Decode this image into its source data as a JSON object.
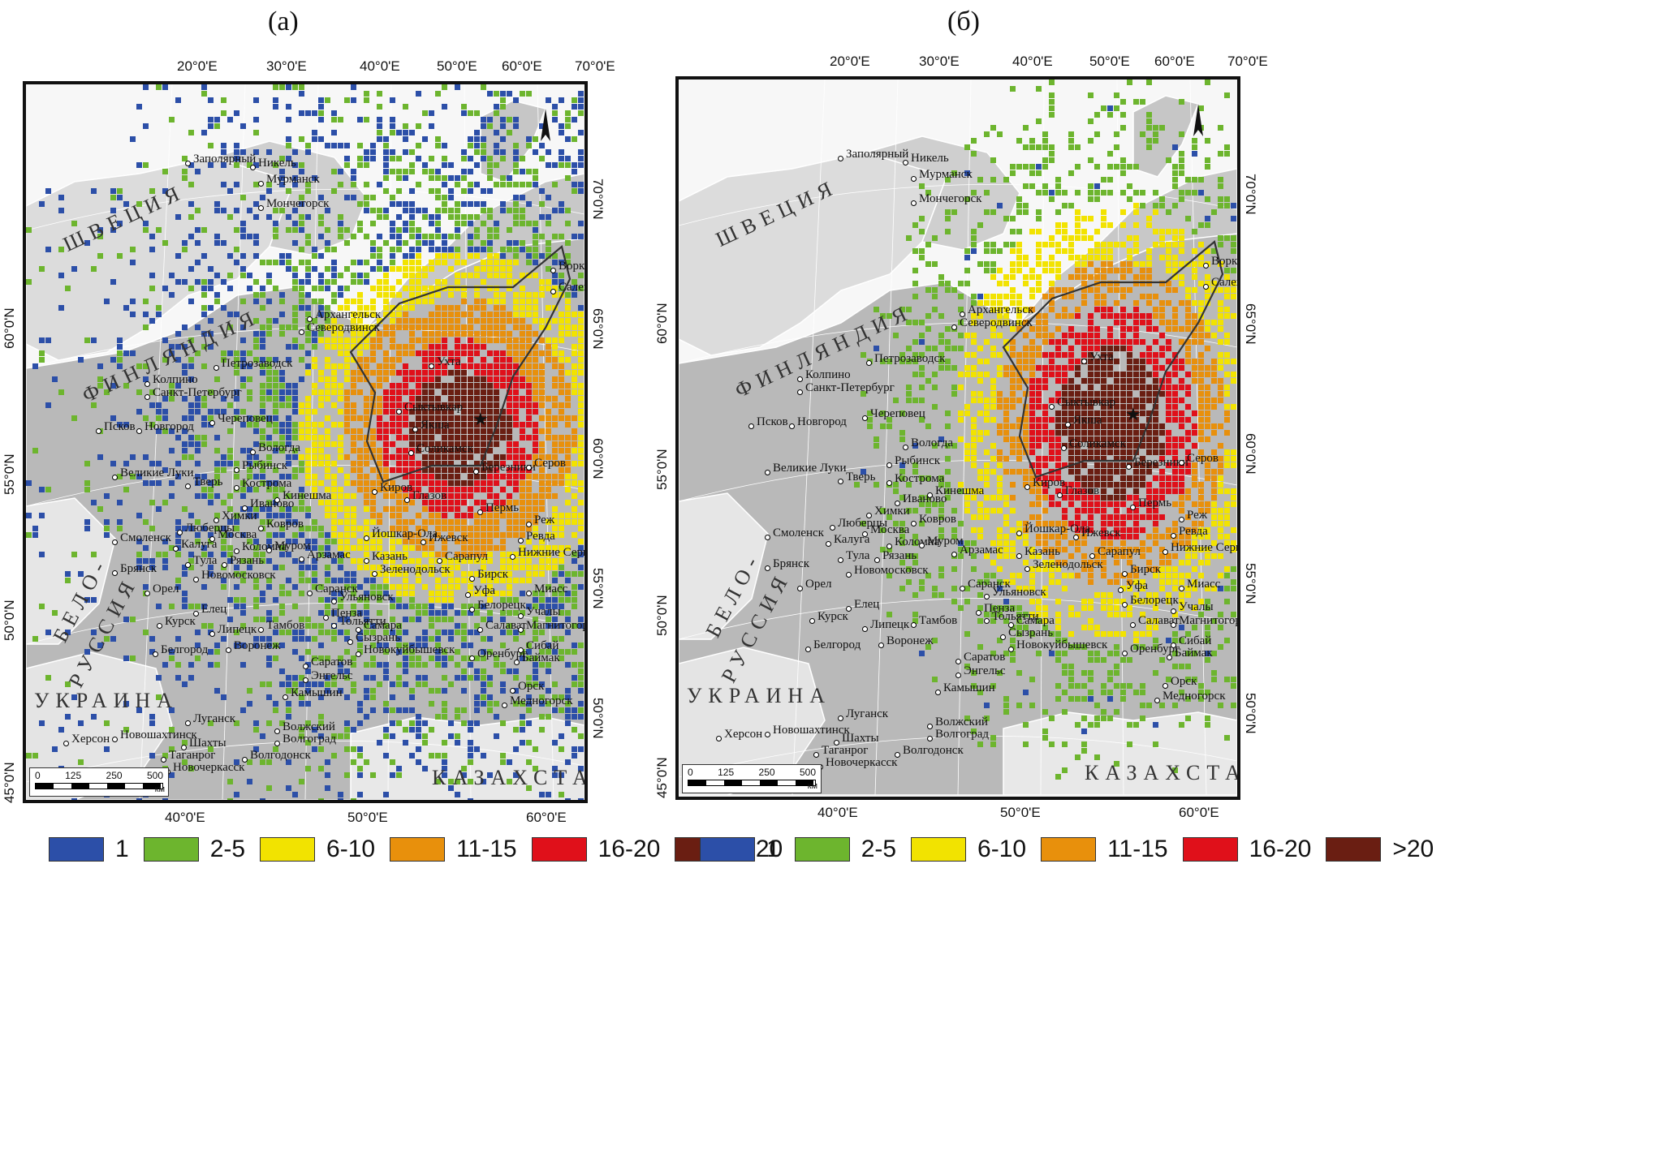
{
  "panels": [
    {
      "label": "(а)",
      "lon_top": [
        "20°0'E",
        "30°0'E",
        "40°0'E",
        "50°0'E",
        "60°0'E",
        "70°0'E"
      ],
      "lon_bottom": [
        "40°0'E",
        "50°0'E",
        "60°0'E"
      ],
      "lat_left": [
        "60°0'N",
        "55°0'N",
        "50°0'N",
        "45°0'N"
      ],
      "lat_right": [
        "70°0'N",
        "65°0'N",
        "60°0'N",
        "55°0'N",
        "50°0'N"
      ],
      "countries": [
        "ШВЕЦИЯ",
        "ФИНЛЯНДИЯ",
        "БЕЛО-",
        "РУССИЯ",
        "УКРАИНА",
        "КАЗАХСТАН"
      ],
      "cities": [
        "Заполярный",
        "Никель",
        "Мурманск",
        "Мончегорск",
        "Архангельск",
        "Северодвинск",
        "Петрозаводск",
        "Колпино",
        "Санкт-Петербург",
        "Псков",
        "Новгород",
        "Череповец",
        "Вологда",
        "Великие Луки",
        "Рыбинск",
        "Тверь",
        "Кострома",
        "Кинешма",
        "Иваново",
        "Химки",
        "Ковров",
        "Люберцы",
        "Москва",
        "Смоленск",
        "Калуга",
        "Коломна",
        "Муром",
        "Тула",
        "Рязань",
        "Брянск",
        "Новомосковск",
        "Орел",
        "Елец",
        "Курск",
        "Липецк",
        "Тамбов",
        "Белгород",
        "Воронеж",
        "Арзамас",
        "Саранск",
        "Пенза",
        "Ульяновск",
        "Тольятти",
        "Самара",
        "Сызрань",
        "Саратов",
        "Энгельс",
        "Новокуйбышевск",
        "Камышин",
        "Луганск",
        "Новошахтинск",
        "Шахты",
        "Таганрог",
        "Новочеркасск",
        "Волжский",
        "Волгоград",
        "Волгодонск",
        "Херсон",
        "Ухта",
        "Сыктывкар",
        "Якша",
        "Соликамск",
        "Березники",
        "Киров",
        "Глазов",
        "Пермь",
        "Йошкар-Ола",
        "Ижевск",
        "Казань",
        "Зеленодольск",
        "Сарапул",
        "Бирск",
        "Уфа",
        "Белорецк",
        "Салават",
        "Оренбург",
        "Орск",
        "Медногорск",
        "Сибай",
        "Баймак",
        "Магнитогорск",
        "Миасс",
        "Учалы",
        "Реж",
        "Ревда",
        "Нижние Серги",
        "Серов",
        "Воркута",
        "Салехард"
      ],
      "scale": {
        "ticks": [
          "0",
          "125",
          "250",
          "500"
        ],
        "unit": "км"
      }
    },
    {
      "label": "(б)",
      "lon_top": [
        "20°0'E",
        "30°0'E",
        "40°0'E",
        "50°0'E",
        "60°0'E",
        "70°0'E"
      ],
      "lon_bottom": [
        "40°0'E",
        "50°0'E",
        "60°0'E"
      ],
      "lat_left": [
        "60°0'N",
        "55°0'N",
        "50°0'N",
        "45°0'N"
      ],
      "lat_right": [
        "70°0'N",
        "65°0'N",
        "60°0'N",
        "55°0'N",
        "50°0'N"
      ],
      "countries": [
        "ШВЕЦИЯ",
        "ФИНЛЯНДИЯ",
        "БЕЛО-",
        "РУССИЯ",
        "УКРАИНА",
        "КАЗАХСТАН"
      ],
      "cities": [
        "Заполярный",
        "Никель",
        "Мурманск",
        "Мончегорск",
        "Архангельск",
        "Северодвинск",
        "Петрозаводск",
        "Колпино",
        "Санкт-Петербург",
        "Псков",
        "Новгород",
        "Череповец",
        "Вологда",
        "Великие Луки",
        "Рыбинск",
        "Тверь",
        "Кострома",
        "Кинешма",
        "Иваново",
        "Химки",
        "Ковров",
        "Люберцы",
        "Москва",
        "Смоленск",
        "Калуга",
        "Коломна",
        "Муром",
        "Тула",
        "Рязань",
        "Брянск",
        "Новомосковск",
        "Орел",
        "Елец",
        "Курск",
        "Липецк",
        "Тамбов",
        "Белгород",
        "Воронеж",
        "Арзамас",
        "Саранск",
        "Пенза",
        "Ульяновск",
        "Тольятти",
        "Самара",
        "Сызрань",
        "Саратов",
        "Энгельс",
        "Новокуйбышевск",
        "Камышин",
        "Луганск",
        "Новошахтинск",
        "Шахты",
        "Таганрог",
        "Новочеркасск",
        "Волжский",
        "Волгоград",
        "Волгодонск",
        "Херсон",
        "Ухта",
        "Сыктывкар",
        "Якша",
        "Соликамск",
        "Березники",
        "Киров",
        "Глазов",
        "Пермь",
        "Йошкар-Ола",
        "Ижевск",
        "Казань",
        "Зеленодольск",
        "Сарапул",
        "Бирск",
        "Уфа",
        "Белорецк",
        "Салават",
        "Оренбург",
        "Орск",
        "Медногорск",
        "Сибай",
        "Баймак",
        "Магнитогорск",
        "Миасс",
        "Учалы",
        "Реж",
        "Ревда",
        "Нижние Серги",
        "Серов",
        "Воркута",
        "Салехард"
      ],
      "scale": {
        "ticks": [
          "0",
          "125",
          "250",
          "500"
        ],
        "unit": "км"
      }
    }
  ],
  "legend": [
    {
      "label": "1",
      "color": "#2c4fa8"
    },
    {
      "label": "2-5",
      "color": "#6db52e"
    },
    {
      "label": "6-10",
      "color": "#f2e300"
    },
    {
      "label": "11-15",
      "color": "#e8900c"
    },
    {
      "label": "16-20",
      "color": "#e0101a"
    },
    {
      "label": ">20",
      "color": "#6a1e12"
    }
  ]
}
